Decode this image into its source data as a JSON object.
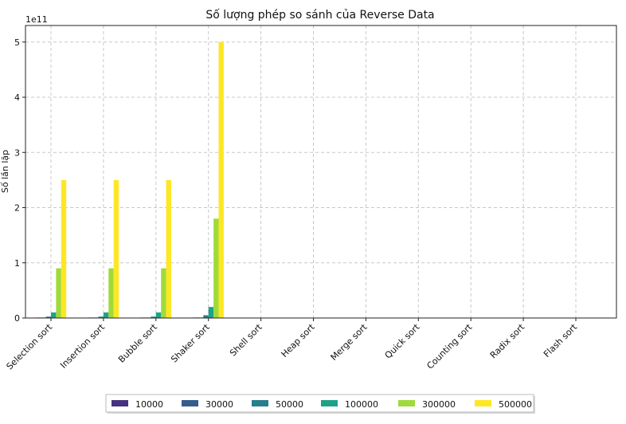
{
  "chart_data": {
    "type": "bar",
    "title": "Số lượng phép so sánh của Reverse Data",
    "ylabel": "Số lần lặp",
    "y_offset_label": "1e11",
    "y_scale_factor": 100000000000,
    "ylim": [
      0,
      530000000000
    ],
    "y_ticks": [
      0,
      100000000000,
      200000000000,
      300000000000,
      400000000000,
      500000000000
    ],
    "y_tick_labels": [
      "0",
      "1",
      "2",
      "3",
      "4",
      "5"
    ],
    "grid": true,
    "legend_position": "bottom",
    "categories": [
      "Selection sort",
      "Insertion sort",
      "Bubble sort",
      "Shaker sort",
      "Shell sort",
      "Heap sort",
      "Merge sort",
      "Quick sort",
      "Counting sort",
      "Radix sort",
      "Flash sort"
    ],
    "series": [
      {
        "name": "10000",
        "color": "#46327e",
        "values": [
          100000000,
          100000000,
          100000000,
          100000000,
          0,
          0,
          0,
          0,
          0,
          0,
          0
        ]
      },
      {
        "name": "30000",
        "color": "#365c8d",
        "values": [
          900000000,
          900000000,
          900000000,
          900000000,
          0,
          0,
          0,
          0,
          0,
          0,
          0
        ]
      },
      {
        "name": "50000",
        "color": "#277f8e",
        "values": [
          2500000000,
          2500000000,
          2500000000,
          5000000000,
          0,
          0,
          0,
          0,
          0,
          0,
          0
        ]
      },
      {
        "name": "100000",
        "color": "#1fa187",
        "values": [
          10000000000,
          10000000000,
          10000000000,
          20000000000,
          0,
          0,
          0,
          0,
          0,
          0,
          0
        ]
      },
      {
        "name": "300000",
        "color": "#9fda3a",
        "values": [
          90000000000,
          90000000000,
          90000000000,
          180000000000,
          0,
          0,
          0,
          0,
          0,
          0,
          0
        ]
      },
      {
        "name": "500000",
        "color": "#fde725",
        "values": [
          250000000000,
          250000000000,
          250000000000,
          500000000000,
          0,
          0,
          0,
          0,
          0,
          0,
          0
        ]
      }
    ]
  }
}
